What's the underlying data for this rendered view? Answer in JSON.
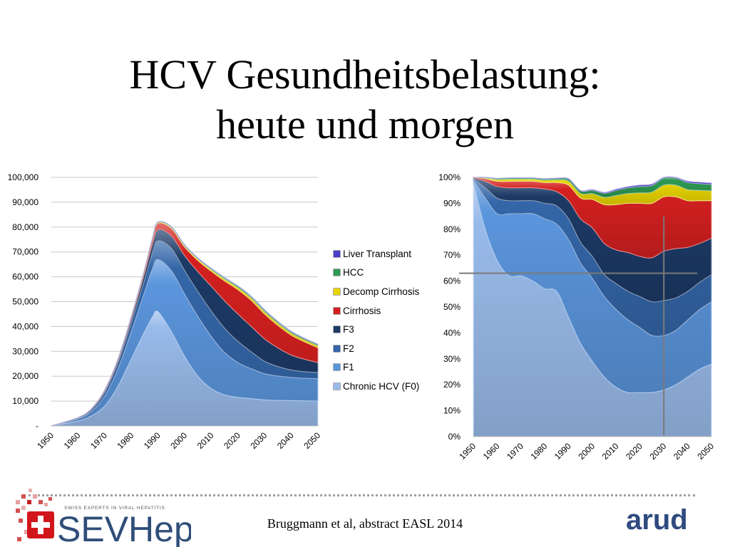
{
  "title": {
    "line1": "HCV Gesundheitsbelastung:",
    "line2": "heute und morgen"
  },
  "citation": "Bruggmann et al, abstract EASL 2014",
  "logos": {
    "left_main": "SEVHep",
    "left_tagline": "SWISS EXPERTS IN VIRAL HEPATITIS",
    "right": "arud"
  },
  "colors": {
    "Chronic HCV (F0)": "#99bbea",
    "F1": "#5b95dc",
    "F2": "#3466a8",
    "F3": "#1c3a66",
    "Cirrhosis": "#d42020",
    "Decomp Cirrhosis": "#e8d400",
    "HCC": "#2f9a55",
    "Liver Transplant": "#4a3fc8"
  },
  "legend": [
    "Liver Transplant",
    "HCC",
    "Decomp Cirrhosis",
    "Cirrhosis",
    "F3",
    "F2",
    "F1",
    "Chronic HCV (F0)"
  ],
  "chart_data": [
    {
      "type": "area",
      "stacked": true,
      "x": [
        1950,
        1960,
        1965,
        1970,
        1975,
        1980,
        1985,
        1988,
        1990,
        1995,
        2000,
        2005,
        2010,
        2015,
        2020,
        2025,
        2030,
        2035,
        2040,
        2045,
        2050
      ],
      "xticks": [
        "1950",
        "1960",
        "1970",
        "1980",
        "1990",
        "2000",
        "2010",
        "2020",
        "2030",
        "2040",
        "2050"
      ],
      "yticks": [
        "-",
        "10,000",
        "20,000",
        "30,000",
        "40,000",
        "50,000",
        "60,000",
        "70,000",
        "80,000",
        "90,000",
        "100,000"
      ],
      "ylim": [
        0,
        100000
      ],
      "grid": true,
      "legend_position": "right",
      "series": [
        {
          "name": "Chronic HCV (F0)",
          "values": [
            0,
            2000,
            4000,
            8000,
            16000,
            27000,
            38000,
            44000,
            46000,
            38000,
            28000,
            20000,
            15000,
            12500,
            11500,
            11000,
            10500,
            10300,
            10200,
            10100,
            10000
          ]
        },
        {
          "name": "F1",
          "values": [
            0,
            900,
            1800,
            4000,
            7000,
            11000,
            16000,
            19500,
            21000,
            24500,
            25000,
            24000,
            21000,
            17000,
            14000,
            12000,
            10500,
            9800,
            9300,
            9100,
            9000
          ]
        },
        {
          "name": "F2",
          "values": [
            0,
            300,
            700,
            1500,
            2400,
            3500,
            5000,
            6500,
            7500,
            9000,
            9500,
            10000,
            10200,
            9800,
            8500,
            6800,
            5000,
            3800,
            3000,
            2600,
            2500
          ]
        },
        {
          "name": "F3",
          "values": [
            0,
            100,
            250,
            600,
            1000,
            1500,
            2500,
            3500,
            4500,
            5000,
            6000,
            8000,
            10000,
            11000,
            11000,
            10200,
            9000,
            7500,
            6000,
            5000,
            4000
          ]
        },
        {
          "name": "Cirrhosis",
          "values": [
            0,
            40,
            100,
            250,
            400,
            700,
            1200,
            1800,
            2500,
            3000,
            3500,
            4500,
            6000,
            8000,
            9800,
            10500,
            10000,
            9000,
            8000,
            7000,
            6000
          ]
        },
        {
          "name": "Decomp Cirrhosis",
          "values": [
            0,
            5,
            15,
            40,
            80,
            150,
            250,
            300,
            300,
            400,
            500,
            600,
            700,
            800,
            900,
            950,
            1000,
            950,
            900,
            850,
            800
          ]
        },
        {
          "name": "HCC",
          "values": [
            0,
            5,
            10,
            20,
            50,
            100,
            150,
            200,
            200,
            250,
            300,
            350,
            400,
            450,
            500,
            520,
            550,
            530,
            500,
            480,
            450
          ]
        },
        {
          "name": "Liver Transplant",
          "values": [
            0,
            0,
            0,
            0,
            0,
            0,
            10,
            20,
            30,
            50,
            80,
            100,
            120,
            130,
            140,
            145,
            150,
            145,
            140,
            135,
            130
          ]
        }
      ]
    },
    {
      "type": "area",
      "stacked": true,
      "percent": true,
      "x": [
        1950,
        1955,
        1960,
        1965,
        1970,
        1975,
        1980,
        1985,
        1990,
        1995,
        2000,
        2005,
        2010,
        2015,
        2020,
        2025,
        2030,
        2035,
        2040,
        2045,
        2050
      ],
      "xticks": [
        "1950",
        "1960",
        "1970",
        "1980",
        "1990",
        "2000",
        "2010",
        "2020",
        "2030",
        "2040",
        "2050"
      ],
      "yticks": [
        "0%",
        "10%",
        "20%",
        "30%",
        "40%",
        "50%",
        "60%",
        "70%",
        "80%",
        "90%",
        "100%"
      ],
      "ylim": [
        0,
        100
      ],
      "grid": false,
      "series": [
        {
          "name": "Chronic HCV (F0)",
          "values": [
            98,
            80,
            68,
            62,
            62,
            60,
            57,
            56,
            46,
            36,
            29,
            23,
            19,
            17,
            17,
            17,
            18,
            20,
            23,
            26,
            28
          ]
        },
        {
          "name": "F1",
          "values": [
            1,
            12,
            18,
            24,
            24,
            26,
            27,
            26,
            30,
            31,
            32,
            31,
            30,
            28,
            25,
            22,
            21,
            21,
            22,
            23,
            24
          ]
        },
        {
          "name": "F2",
          "values": [
            0.6,
            4,
            6,
            5,
            5,
            5,
            6,
            7,
            8,
            8,
            8.5,
            8.5,
            10,
            11,
            12,
            13,
            13.5,
            12.5,
            11,
            10.5,
            10.5
          ]
        },
        {
          "name": "F3",
          "values": [
            0.3,
            2.5,
            4.5,
            5,
            5,
            5,
            5.5,
            5.5,
            7,
            9,
            11,
            12,
            13,
            15,
            15.5,
            17,
            19,
            19,
            17,
            15,
            14
          ]
        },
        {
          "name": "Cirrhosis",
          "values": [
            0.1,
            1,
            2,
            2.5,
            2.5,
            2.5,
            2.5,
            3.5,
            6,
            8,
            11,
            15,
            17.5,
            19,
            20.5,
            21,
            21,
            20,
            18,
            16.5,
            14.5
          ]
        },
        {
          "name": "Decomp Cirrhosis",
          "values": [
            0,
            0.3,
            0.7,
            0.8,
            0.8,
            0.8,
            0.9,
            1,
            1.5,
            1.8,
            2.2,
            2.8,
            3.5,
            3.8,
            4,
            4.3,
            4.5,
            4.5,
            4.3,
            4,
            3.8
          ]
        },
        {
          "name": "HCC",
          "values": [
            0,
            0.2,
            0.4,
            0.5,
            0.5,
            0.5,
            0.5,
            0.6,
            0.8,
            1,
            1.3,
            1.6,
            2,
            2.2,
            2.5,
            2.6,
            2.8,
            2.8,
            2.7,
            2.6,
            2.5
          ]
        },
        {
          "name": "Liver Transplant",
          "values": [
            0,
            0,
            0,
            0,
            0,
            0,
            0.1,
            0.1,
            0.2,
            0.2,
            0.3,
            0.3,
            0.4,
            0.4,
            0.5,
            0.5,
            0.5,
            0.5,
            0.5,
            0.5,
            0.5
          ]
        }
      ],
      "reference_lines": {
        "x": 2030,
        "y": 63
      }
    }
  ]
}
